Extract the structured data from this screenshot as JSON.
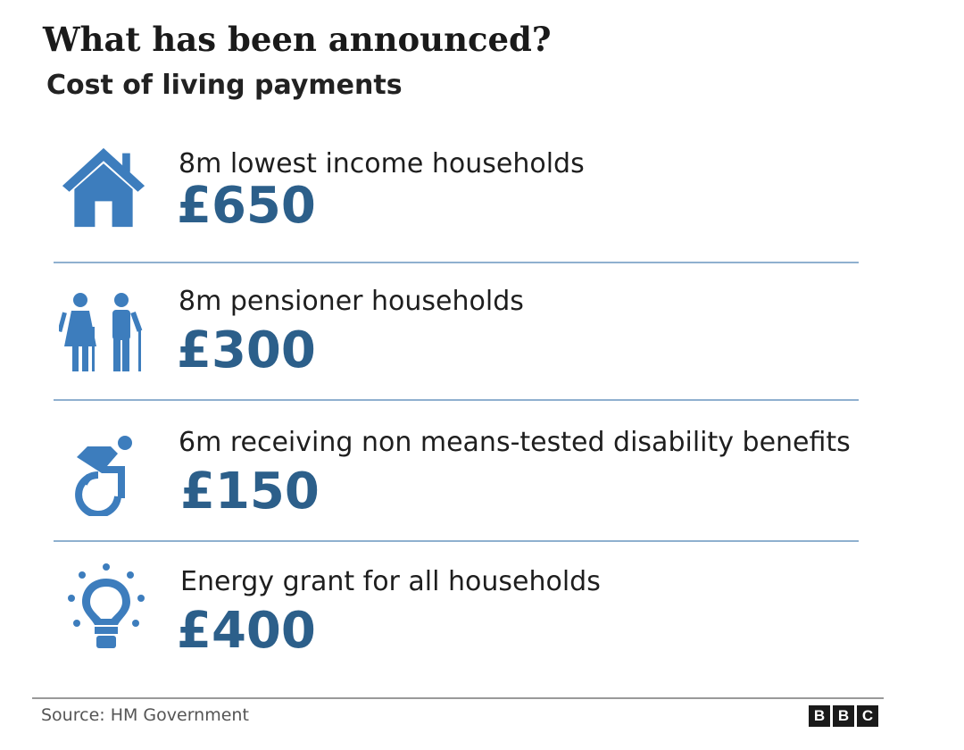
{
  "header": {
    "title": "What has been announced?",
    "subtitle": "Cost of living payments"
  },
  "colors": {
    "accent": "#2c5f8a",
    "icon": "#3d7dbd",
    "divider": "#8fb0cf"
  },
  "items": [
    {
      "icon": "house-icon",
      "label": "8m lowest income households",
      "amount": "£650"
    },
    {
      "icon": "pensioners-icon",
      "label": "8m pensioner households",
      "amount": "£300"
    },
    {
      "icon": "wheelchair-icon",
      "label": "6m receiving non means-tested disability benefits",
      "amount": "£150"
    },
    {
      "icon": "lightbulb-icon",
      "label": "Energy grant for all households",
      "amount": "£400"
    }
  ],
  "footer": {
    "source": "Source: HM Government",
    "logo": [
      "B",
      "B",
      "C"
    ]
  }
}
